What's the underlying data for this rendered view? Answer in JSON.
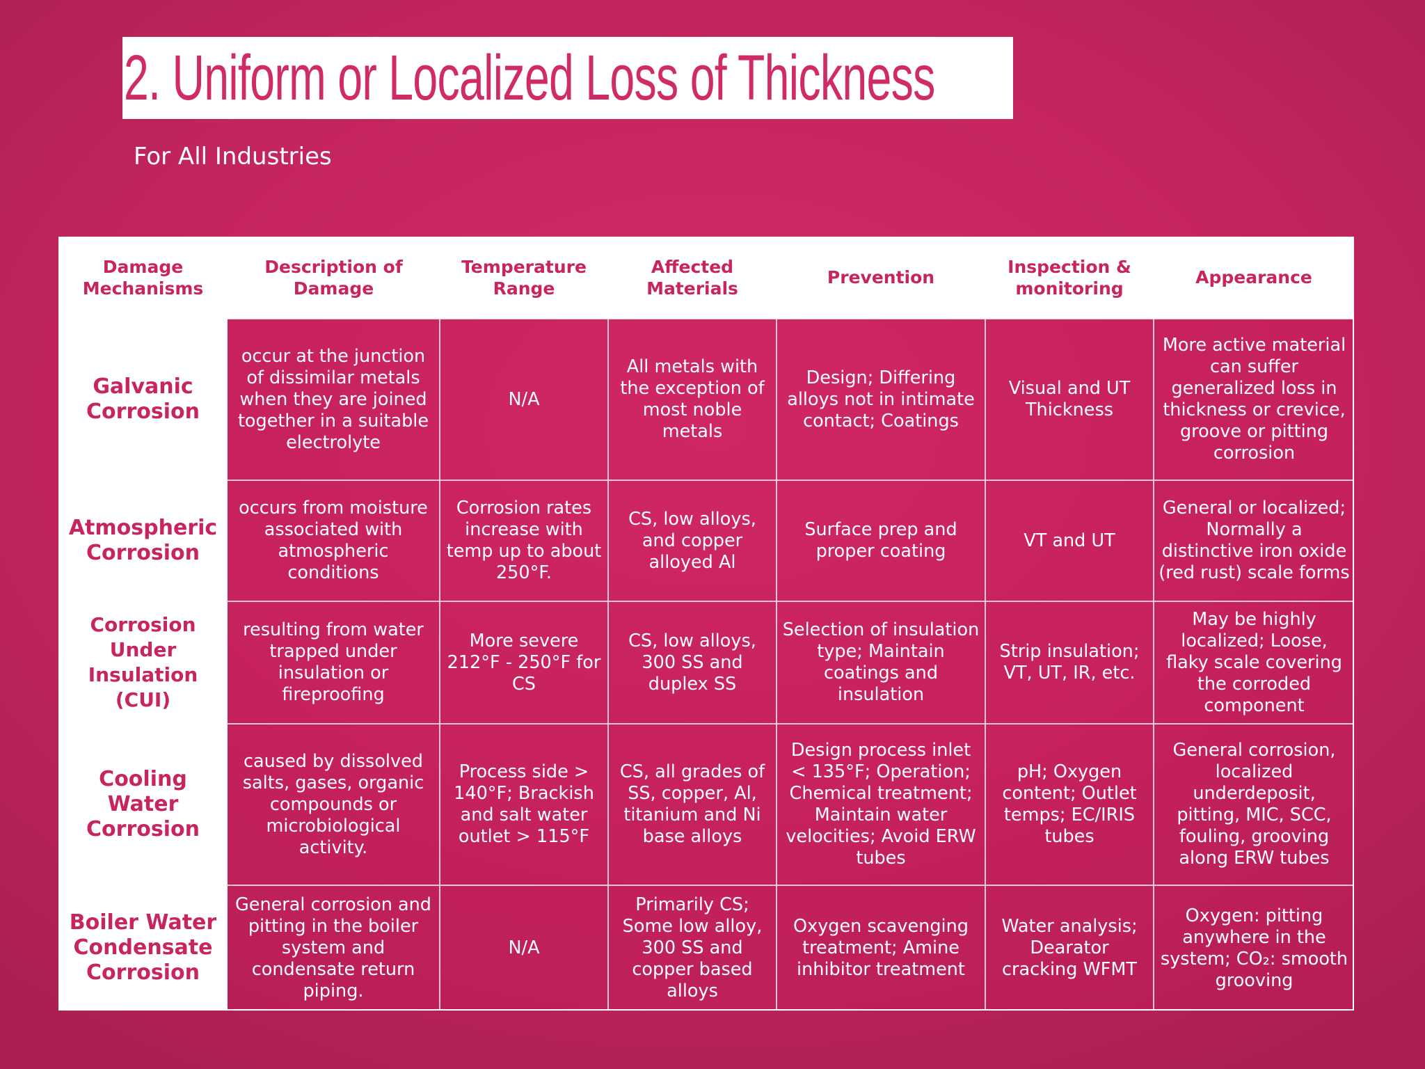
{
  "slide": {
    "title": "2. Uniform or Localized Loss of Thickness",
    "subtitle": "For All Industries"
  },
  "colors": {
    "accent": "#d02a67",
    "background": "#c4245f",
    "text_on_accent": "#ffffff"
  },
  "table": {
    "headers": [
      "Damage Mechanisms",
      "Description of Damage",
      "Temperature Range",
      "Affected Materials",
      "Prevention",
      "Inspection & monitoring",
      "Appearance"
    ],
    "rows": [
      {
        "mechanism": "Galvanic Corrosion",
        "description": "occur at the junction of dissimilar metals when they are joined together in a suitable electrolyte",
        "temperature": "N/A",
        "materials": "All metals with the exception of most noble metals",
        "prevention": "Design; Differing alloys not in intimate contact; Coatings",
        "inspection": "Visual and UT Thickness",
        "appearance": "More active material can suffer generalized loss in thickness or crevice, groove or pitting corrosion"
      },
      {
        "mechanism": "Atmospheric Corrosion",
        "description": "occurs from moisture associated with atmospheric conditions",
        "temperature": "Corrosion rates increase with temp up to about 250°F.",
        "materials": "CS, low alloys, and copper alloyed Al",
        "prevention": "Surface prep and proper coating",
        "inspection": "VT and UT",
        "appearance": "General or localized; Normally a distinctive iron oxide (red rust) scale forms"
      },
      {
        "mechanism": "Corrosion Under Insulation (CUI)",
        "description": "resulting from water trapped under insulation or fireproofing",
        "temperature": "More severe 212°F - 250°F for CS",
        "materials": "CS, low alloys, 300 SS and duplex SS",
        "prevention": "Selection of insulation type; Maintain coatings and insulation",
        "inspection": "Strip insulation; VT, UT, IR, etc.",
        "appearance": "May be highly localized; Loose, flaky scale covering the corroded component"
      },
      {
        "mechanism": "Cooling Water Corrosion",
        "description": "caused by dissolved salts, gases, organic compounds or microbiological activity.",
        "temperature": "Process side > 140°F; Brackish and salt water outlet > 115°F",
        "materials": "CS, all grades of SS, copper, Al, titanium and Ni base alloys",
        "prevention": "Design process inlet < 135°F; Operation; Chemical treatment; Maintain water velocities; Avoid ERW tubes",
        "inspection": "pH; Oxygen content; Outlet temps; EC/IRIS tubes",
        "appearance": "General corrosion, localized underdeposit, pitting, MIC, SCC, fouling, grooving along ERW tubes"
      },
      {
        "mechanism": "Boiler Water Condensate Corrosion",
        "description": "General corrosion and pitting in the boiler system and condensate return piping.",
        "temperature": "N/A",
        "materials": "Primarily CS; Some low alloy, 300 SS and copper based alloys",
        "prevention": "Oxygen scavenging treatment; Amine inhibitor treatment",
        "inspection": "Water analysis; Dearator cracking WFMT",
        "appearance": "Oxygen: pitting anywhere in the system; CO₂: smooth grooving"
      }
    ]
  }
}
